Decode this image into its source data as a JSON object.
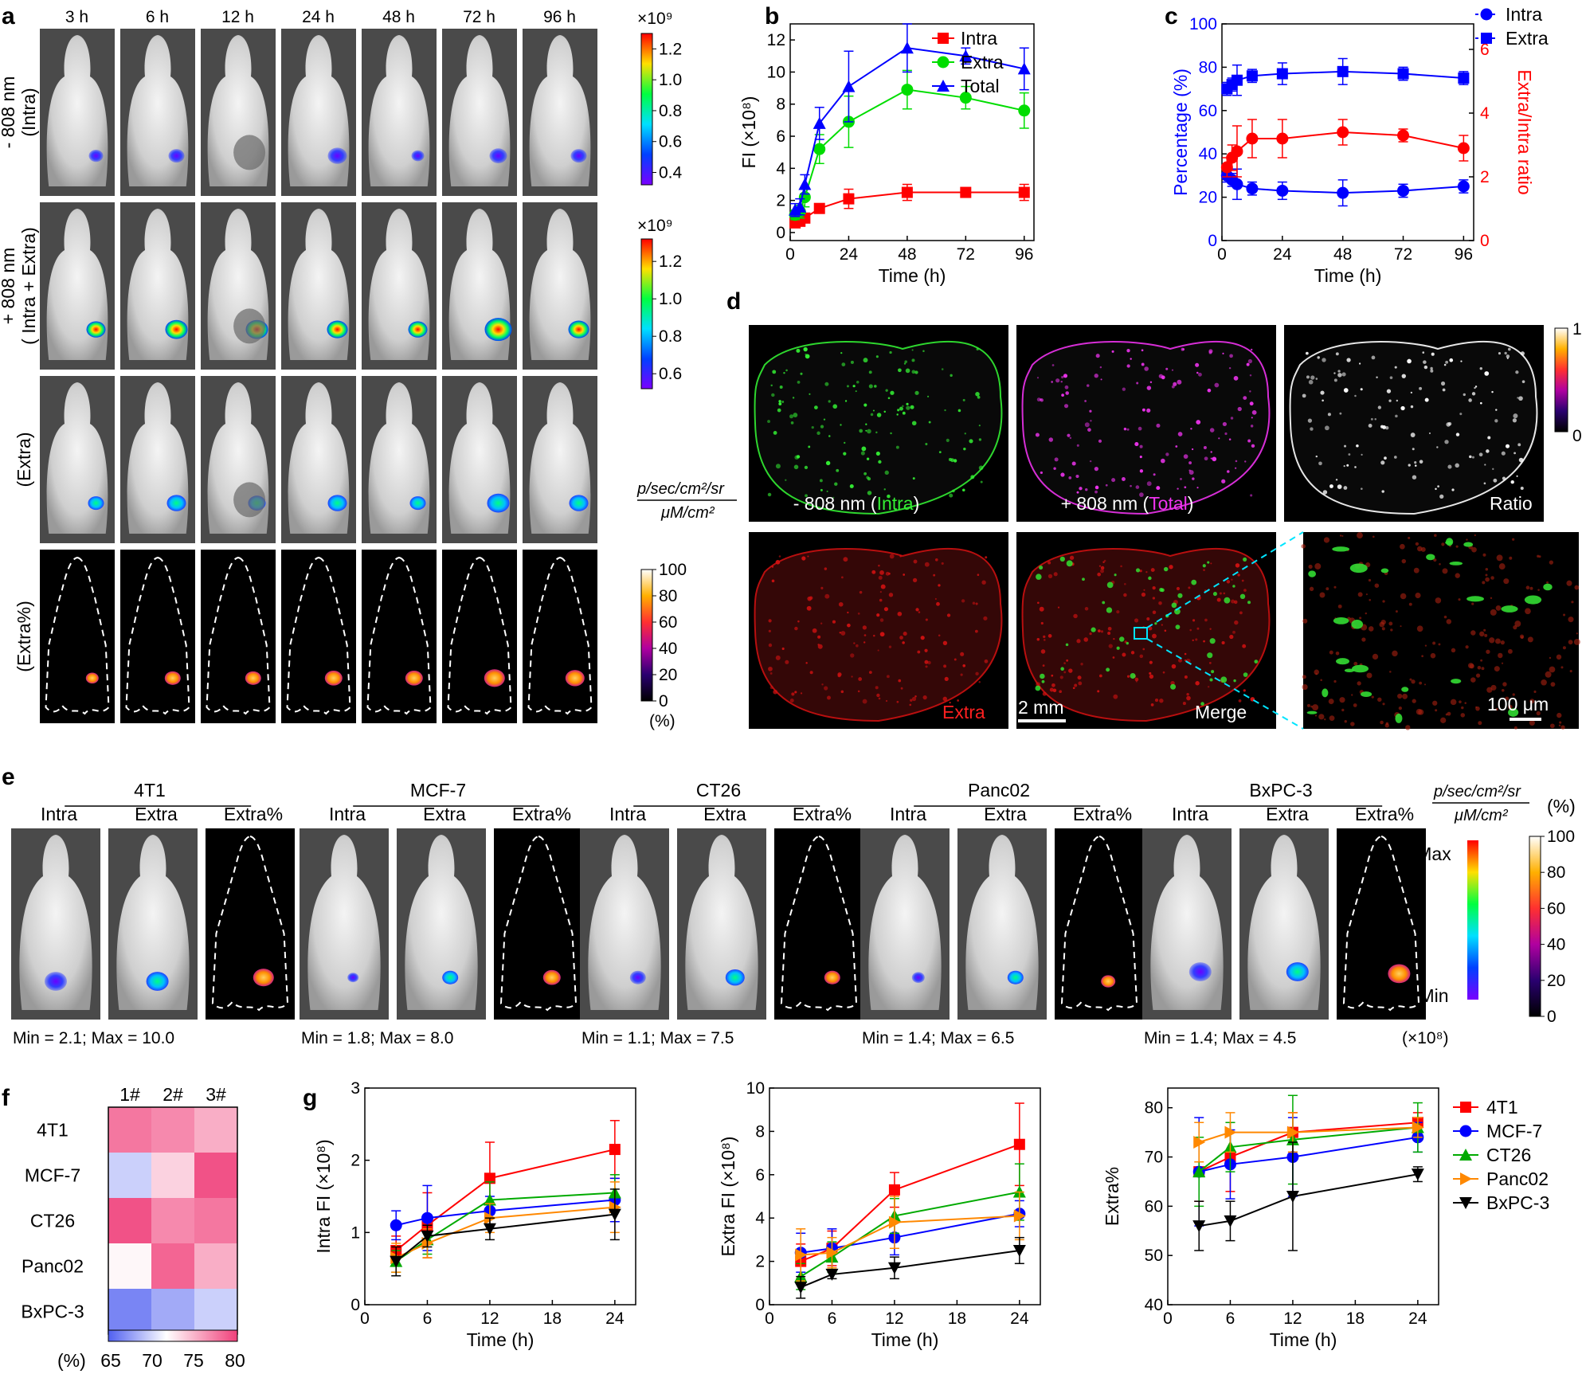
{
  "panels": {
    "a": "a",
    "b": "b",
    "c": "c",
    "d": "d",
    "e": "e",
    "f": "f",
    "g": "g"
  },
  "panel_a": {
    "times": [
      "3 h",
      "6 h",
      "12 h",
      "24 h",
      "48 h",
      "72 h",
      "96 h"
    ],
    "rows": [
      {
        "label1": "- 808 nm",
        "label2": "(Intra)"
      },
      {
        "label1": "+ 808 nm",
        "label2": "( Intra + Extra)"
      },
      {
        "label1": "(Extra)",
        "label2": ""
      },
      {
        "label1": "(Extra%)",
        "label2": ""
      }
    ],
    "colorbars": [
      {
        "exp": "×10⁹",
        "ticks": [
          "1.2",
          "1.0",
          "0.8",
          "0.6",
          "0.4"
        ]
      },
      {
        "exp": "×10⁹",
        "ticks": [
          "1.2",
          "1.0",
          "0.8",
          "0.6"
        ]
      },
      {
        "ticks": [
          "100",
          "80",
          "60",
          "40",
          "20",
          "0"
        ],
        "unit": "(%)"
      }
    ],
    "units_num": "p/sec/cm²/sr",
    "units_den": "μM/cm²"
  },
  "panel_d": {
    "labels": {
      "intra_pre": "- 808 nm (",
      "intra_word": "Intra",
      "intra_post": ")",
      "total_pre": "+ 808 nm (",
      "total_word": "Total",
      "total_post": ")",
      "ratio": "Ratio",
      "extra": "Extra",
      "merge": "Merge",
      "scale1": "2 mm",
      "scale2": "100 μm"
    },
    "colorbar": {
      "max": "1",
      "min": "0"
    }
  },
  "panel_e": {
    "groups": [
      {
        "name": "4T1",
        "minmax": "Min = 2.1; Max = 10.0"
      },
      {
        "name": "MCF-7",
        "minmax": "Min = 1.8; Max = 8.0"
      },
      {
        "name": "CT26",
        "minmax": "Min = 1.1; Max = 7.5"
      },
      {
        "name": "Panc02",
        "minmax": "Min = 1.4; Max = 6.5"
      },
      {
        "name": "BxPC-3",
        "minmax": "Min = 1.4; Max = 4.5"
      }
    ],
    "col_labels": [
      "Intra",
      "Extra",
      "Extra%"
    ],
    "exp": "(×10⁸)",
    "units_num": "p/sec/cm²/sr",
    "units_den": "μM/cm²",
    "pct": "(%)",
    "bar_max": "Max",
    "bar_min": "Min",
    "pct_ticks": [
      "100",
      "80",
      "60",
      "40",
      "20",
      "0"
    ]
  },
  "panel_f": {
    "cols": [
      "1#",
      "2#",
      "3#"
    ],
    "rows": [
      "4T1",
      "MCF-7",
      "CT26",
      "Panc02",
      "BxPC-3"
    ],
    "values": [
      [
        78,
        77,
        75
      ],
      [
        68,
        73,
        80
      ],
      [
        80,
        77,
        78
      ],
      [
        71,
        79,
        75
      ],
      [
        64,
        66,
        68
      ]
    ],
    "cbar_ticks": [
      "65",
      "70",
      "75",
      "80"
    ],
    "cbar_unit": "(%)"
  },
  "chart_data": [
    {
      "id": "b",
      "type": "line",
      "xlabel": "Time (h)",
      "ylabel": "FI (×10⁸)",
      "xlim": [
        0,
        100
      ],
      "ylim": [
        -0.5,
        13
      ],
      "xticks": [
        0,
        24,
        48,
        72,
        96
      ],
      "yticks": [
        0,
        2,
        4,
        6,
        8,
        10,
        12
      ],
      "x": [
        2,
        4,
        6,
        12,
        24,
        48,
        72,
        96
      ],
      "series": [
        {
          "name": "Intra",
          "color": "#ff0000",
          "marker": "square",
          "values": [
            0.6,
            0.7,
            0.9,
            1.5,
            2.1,
            2.5,
            2.5,
            2.5
          ],
          "err": [
            0.15,
            0.15,
            0.2,
            0.25,
            0.6,
            0.5,
            0.2,
            0.5
          ]
        },
        {
          "name": "Extra",
          "color": "#00dd00",
          "marker": "circle",
          "values": [
            1.1,
            1.3,
            2.2,
            5.2,
            6.9,
            8.9,
            8.4,
            7.6
          ],
          "err": [
            0.3,
            0.4,
            0.6,
            0.9,
            1.6,
            1.2,
            0.7,
            1.1
          ]
        },
        {
          "name": "Total",
          "color": "#0000ff",
          "marker": "triangle",
          "values": [
            1.4,
            1.6,
            3.0,
            6.8,
            9.1,
            11.5,
            11.0,
            10.2
          ],
          "err": [
            0.4,
            0.5,
            0.6,
            1.0,
            2.2,
            1.5,
            0.5,
            1.3
          ]
        }
      ]
    },
    {
      "id": "c",
      "type": "line",
      "xlabel": "Time (h)",
      "ylabel": "Percentage (%)",
      "ylabel2": "Extra/Intra ratio",
      "xlim": [
        0,
        100
      ],
      "ylim": [
        0,
        100
      ],
      "ylim2": [
        0,
        6.8
      ],
      "xticks": [
        0,
        24,
        48,
        72,
        96
      ],
      "yticks": [
        0,
        20,
        40,
        60,
        80,
        100
      ],
      "yticks2": [
        0,
        2,
        4,
        6
      ],
      "x": [
        2,
        4,
        6,
        12,
        24,
        48,
        72,
        96
      ],
      "series": [
        {
          "name": "Intra",
          "axis": "left",
          "color": "#0000ff",
          "marker": "circle",
          "values": [
            30,
            28,
            26,
            24,
            23,
            22,
            23,
            25
          ],
          "err": [
            3,
            3,
            7,
            3,
            4,
            6,
            3,
            3
          ]
        },
        {
          "name": "Extra",
          "axis": "left",
          "color": "#0000ff",
          "marker": "square",
          "values": [
            70,
            72,
            74,
            76,
            77,
            78,
            77,
            75
          ],
          "err": [
            3,
            3,
            7,
            3,
            5,
            6,
            3,
            3
          ]
        },
        {
          "name": "Extra/Intra ratio",
          "axis": "right",
          "color": "#ff0000",
          "marker": "circle",
          "values": [
            2.3,
            2.6,
            2.8,
            3.2,
            3.2,
            3.4,
            3.3,
            2.9
          ],
          "err": [
            0.3,
            0.4,
            0.8,
            0.6,
            0.6,
            0.4,
            0.2,
            0.4
          ]
        }
      ]
    },
    {
      "id": "g1",
      "type": "line",
      "xlabel": "Time (h)",
      "ylabel": "Intra FI (×10⁸)",
      "xlim": [
        0,
        26
      ],
      "ylim": [
        0,
        3
      ],
      "xticks": [
        0,
        6,
        12,
        18,
        24
      ],
      "yticks": [
        0,
        1,
        2,
        3
      ],
      "x": [
        3,
        6,
        12,
        24
      ],
      "series": [
        {
          "name": "4T1",
          "color": "#ff0000",
          "marker": "square",
          "values": [
            0.75,
            1.1,
            1.75,
            2.15
          ],
          "err": [
            0.2,
            0.45,
            0.5,
            0.4
          ]
        },
        {
          "name": "MCF-7",
          "color": "#0000ff",
          "marker": "circle",
          "values": [
            1.1,
            1.2,
            1.3,
            1.45
          ],
          "err": [
            0.2,
            0.45,
            0.2,
            0.3
          ]
        },
        {
          "name": "CT26",
          "color": "#00aa00",
          "marker": "triangle",
          "values": [
            0.6,
            0.9,
            1.45,
            1.55
          ],
          "err": [
            0.15,
            0.2,
            0.25,
            0.25
          ]
        },
        {
          "name": "Panc02",
          "color": "#ff8800",
          "marker": "triright",
          "values": [
            0.65,
            0.85,
            1.2,
            1.35
          ],
          "err": [
            0.2,
            0.2,
            0.2,
            0.35
          ]
        },
        {
          "name": "BxPC-3",
          "color": "#000000",
          "marker": "tridown",
          "values": [
            0.6,
            0.95,
            1.05,
            1.25
          ],
          "err": [
            0.2,
            0.15,
            0.15,
            0.35
          ]
        }
      ]
    },
    {
      "id": "g2",
      "type": "line",
      "xlabel": "Time (h)",
      "ylabel": "Extra FI (×10⁸)",
      "xlim": [
        0,
        26
      ],
      "ylim": [
        0,
        10
      ],
      "xticks": [
        0,
        6,
        12,
        18,
        24
      ],
      "yticks": [
        0,
        2,
        4,
        6,
        8,
        10
      ],
      "x": [
        3,
        6,
        12,
        24
      ],
      "series": [
        {
          "name": "4T1",
          "color": "#ff0000",
          "marker": "square",
          "values": [
            2.0,
            2.6,
            5.3,
            7.4
          ],
          "err": [
            0.8,
            0.8,
            0.8,
            1.9
          ]
        },
        {
          "name": "MCF-7",
          "color": "#0000ff",
          "marker": "circle",
          "values": [
            2.4,
            2.6,
            3.1,
            4.2
          ],
          "err": [
            0.9,
            0.9,
            0.8,
            0.6
          ]
        },
        {
          "name": "CT26",
          "color": "#00aa00",
          "marker": "triangle",
          "values": [
            1.3,
            2.2,
            4.1,
            5.2
          ],
          "err": [
            0.6,
            0.7,
            0.8,
            1.3
          ]
        },
        {
          "name": "Panc02",
          "color": "#ff8800",
          "marker": "triright",
          "values": [
            2.3,
            2.4,
            3.8,
            4.1
          ],
          "err": [
            1.2,
            0.7,
            1.2,
            1.1
          ]
        },
        {
          "name": "BxPC-3",
          "color": "#000000",
          "marker": "tridown",
          "values": [
            0.8,
            1.4,
            1.7,
            2.5
          ],
          "err": [
            0.5,
            0.2,
            0.5,
            0.6
          ]
        }
      ]
    },
    {
      "id": "g3",
      "type": "line",
      "xlabel": "Time (h)",
      "ylabel": "Extra%",
      "xlim": [
        0,
        26
      ],
      "ylim": [
        40,
        84
      ],
      "xticks": [
        0,
        6,
        12,
        18,
        24
      ],
      "yticks": [
        40,
        50,
        60,
        70,
        80
      ],
      "x": [
        3,
        6,
        12,
        24
      ],
      "series": [
        {
          "name": "4T1",
          "color": "#ff0000",
          "marker": "square",
          "values": [
            67,
            70,
            75,
            77
          ],
          "err": [
            6,
            7,
            4,
            2
          ]
        },
        {
          "name": "MCF-7",
          "color": "#0000ff",
          "marker": "circle",
          "values": [
            67,
            68.5,
            70,
            74
          ],
          "err": [
            11,
            7,
            8,
            3
          ]
        },
        {
          "name": "CT26",
          "color": "#00aa00",
          "marker": "triangle",
          "values": [
            67,
            72,
            73.5,
            76
          ],
          "err": [
            7,
            5,
            9,
            5
          ]
        },
        {
          "name": "Panc02",
          "color": "#ff8800",
          "marker": "triright",
          "values": [
            73,
            75,
            75,
            76
          ],
          "err": [
            4,
            4,
            4,
            2
          ]
        },
        {
          "name": "BxPC-3",
          "color": "#000000",
          "marker": "tridown",
          "values": [
            56,
            57,
            62,
            66.5
          ],
          "err": [
            5,
            4,
            11,
            1.5
          ]
        }
      ]
    }
  ]
}
